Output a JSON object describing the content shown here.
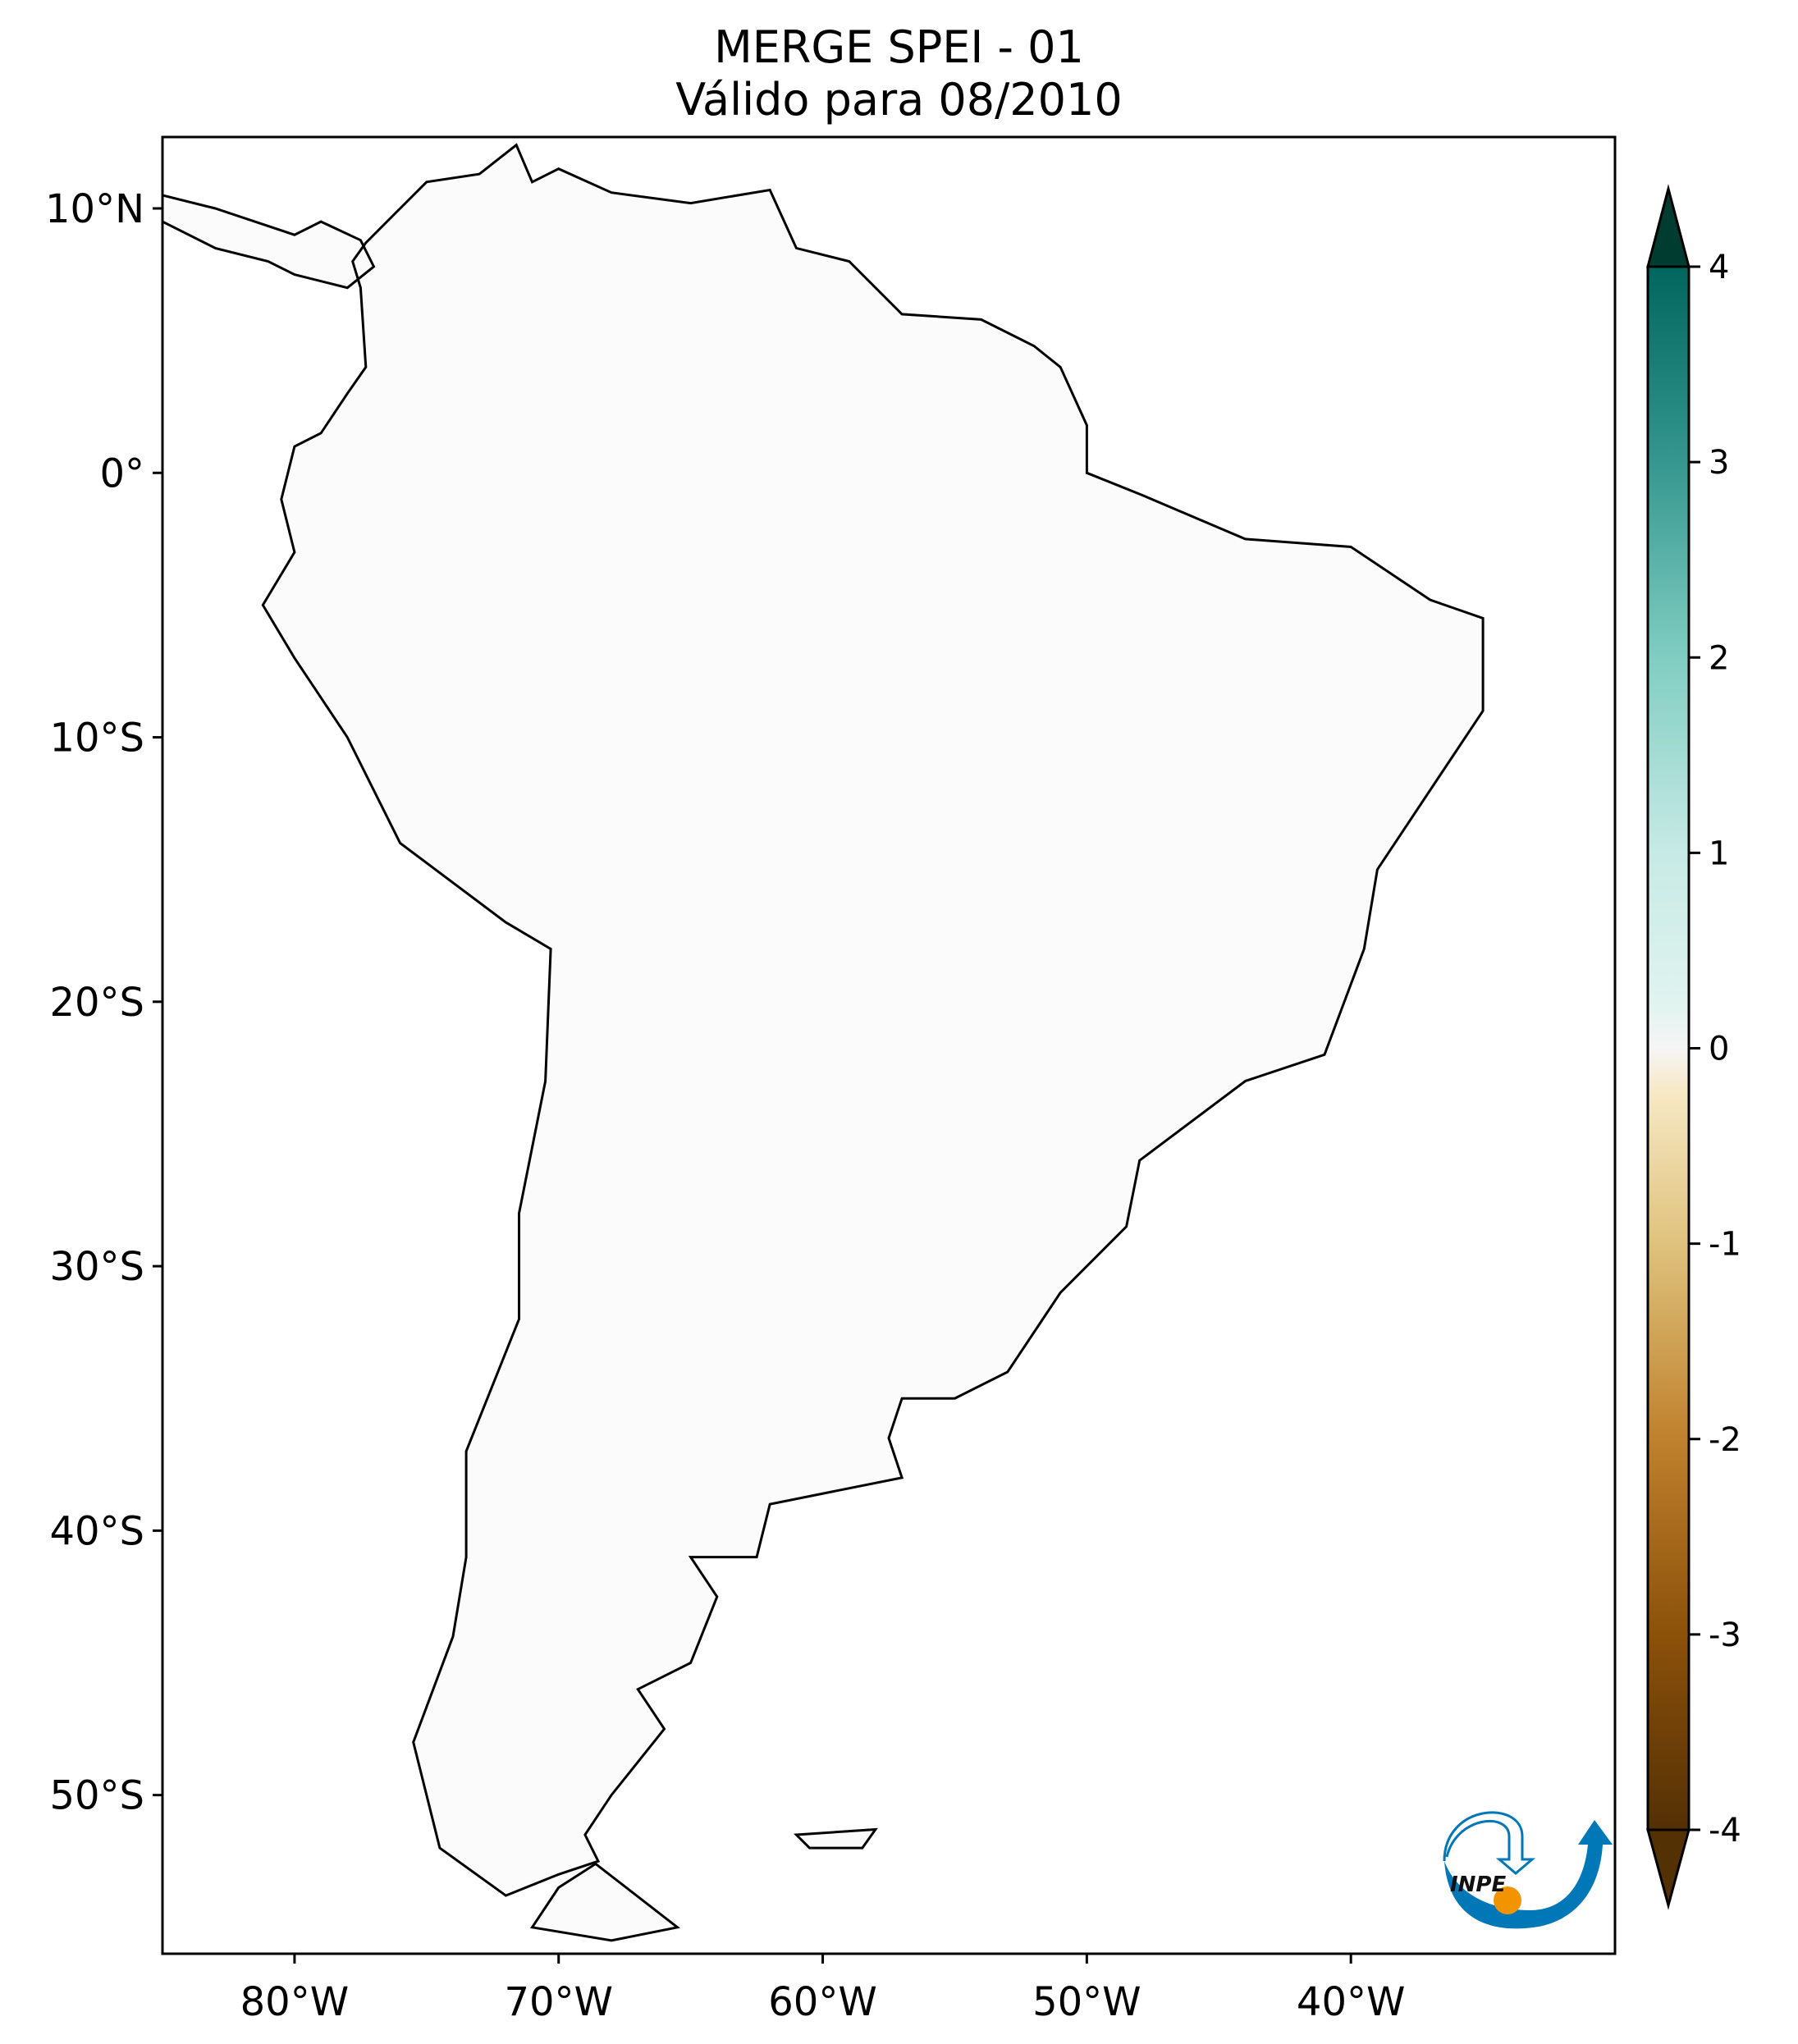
{
  "title": {
    "line1": "MERGE   SPEI - 01",
    "line2": "Válido para 08/2010"
  },
  "map": {
    "extent_lon": [
      -85,
      -30
    ],
    "extent_lat": [
      -56,
      12.7
    ],
    "projection": "plate-carree",
    "lon_ticks": [
      {
        "value": -80,
        "label": "80°W"
      },
      {
        "value": -70,
        "label": "70°W"
      },
      {
        "value": -60,
        "label": "60°W"
      },
      {
        "value": -50,
        "label": "50°W"
      },
      {
        "value": -40,
        "label": "40°W"
      }
    ],
    "lat_ticks": [
      {
        "value": 10,
        "label": "10°N"
      },
      {
        "value": 0,
        "label": "0°"
      },
      {
        "value": -10,
        "label": "10°S"
      },
      {
        "value": -20,
        "label": "20°S"
      },
      {
        "value": -30,
        "label": "30°S"
      },
      {
        "value": -40,
        "label": "40°S"
      },
      {
        "value": -50,
        "label": "50°S"
      }
    ]
  },
  "colorbar": {
    "colormap": "BrBG",
    "range": [
      -4,
      4
    ],
    "extend": "both",
    "ticks": [
      {
        "value": 4,
        "label": "4"
      },
      {
        "value": 3,
        "label": "3"
      },
      {
        "value": 2,
        "label": "2"
      },
      {
        "value": 1,
        "label": "1"
      },
      {
        "value": 0,
        "label": "0"
      },
      {
        "value": -1,
        "label": "-1"
      },
      {
        "value": -2,
        "label": "-2"
      },
      {
        "value": -3,
        "label": "-3"
      },
      {
        "value": -4,
        "label": "-4"
      }
    ],
    "colors": {
      "min": "#543005",
      "dry": "#bf812d",
      "neutral": "#f5f5f5",
      "wet": "#35978f",
      "max": "#003c30"
    }
  },
  "logo": {
    "text": "INPE",
    "blue": "#0077b6",
    "orange": "#f29400"
  }
}
